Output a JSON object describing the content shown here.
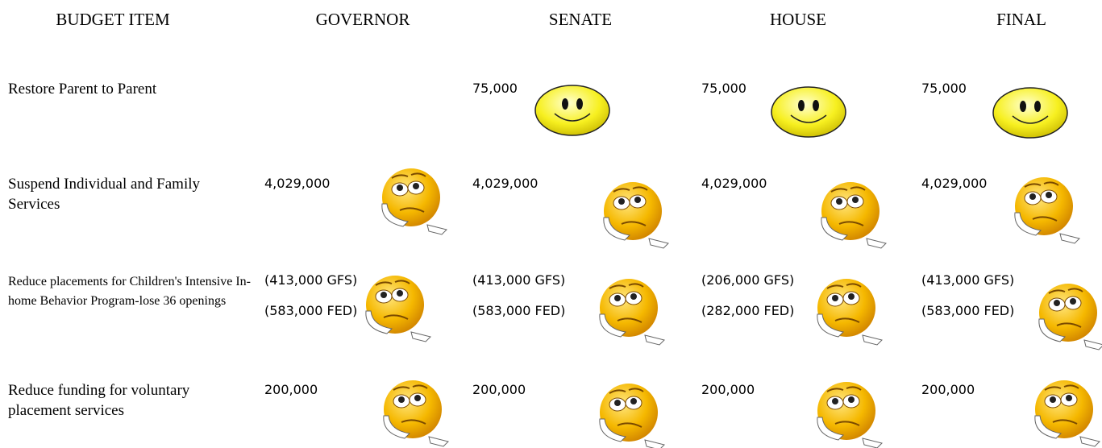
{
  "table": {
    "header": [
      "BUDGET ITEM",
      "GOVERNOR",
      "SENATE",
      "HOUSE",
      "FINAL"
    ],
    "rows": [
      {
        "label": "Restore Parent to Parent",
        "cells": [
          [],
          [
            "75,000"
          ],
          [
            "75,000"
          ],
          [
            "75,000"
          ]
        ]
      },
      {
        "label": "Suspend Individual and Family Services",
        "cells": [
          [
            "4,029,000"
          ],
          [
            "4,029,000"
          ],
          [
            "4,029,000"
          ],
          [
            "4,029,000"
          ]
        ]
      },
      {
        "label": "Reduce placements for Children's Intensive In-home Behavior Program-lose 36 openings",
        "cells": [
          [
            "(413,000 GFS)",
            "(583,000 FED)"
          ],
          [
            "(413,000 GFS)",
            "(583,000 FED)"
          ],
          [
            "(206,000 GFS)",
            "(282,000 FED)"
          ],
          [
            "(413,000 GFS)",
            "(583,000 FED)"
          ]
        ]
      },
      {
        "label": "Reduce funding for voluntary placement services",
        "cells": [
          [
            "200,000"
          ],
          [
            "200,000"
          ],
          [
            "200,000"
          ],
          [
            "200,000"
          ]
        ]
      }
    ]
  }
}
